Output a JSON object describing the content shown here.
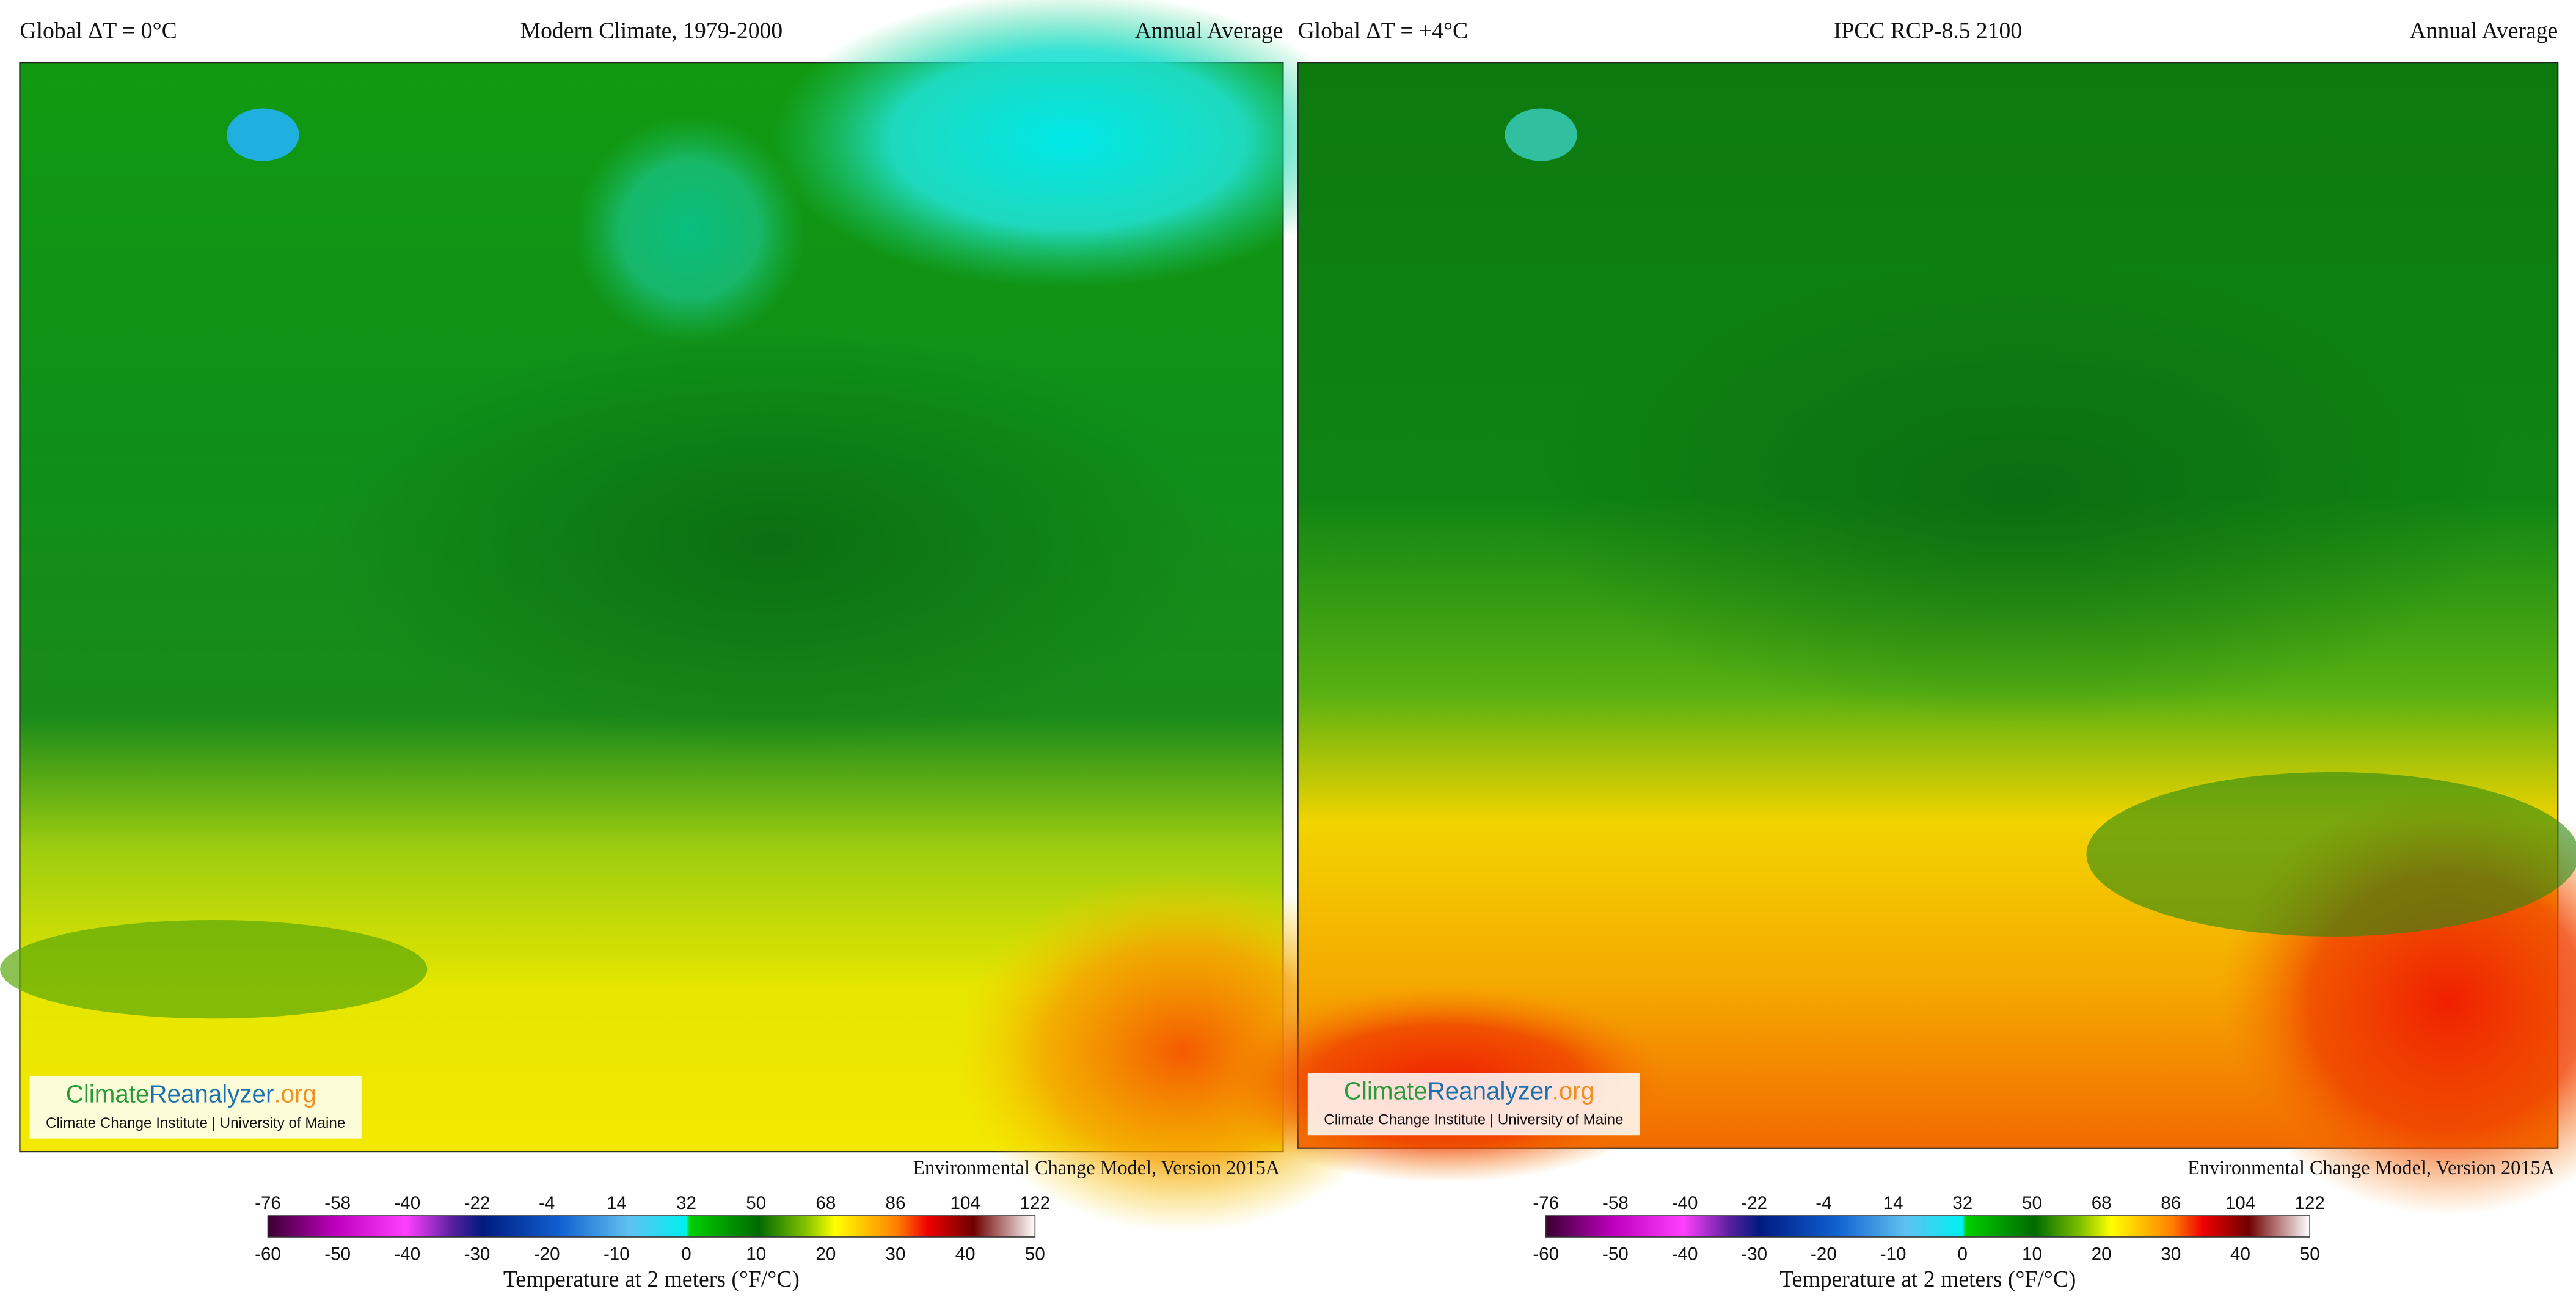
{
  "panels": [
    {
      "left": "Global ΔT = 0°C",
      "title": "Modern Climate, 1979-2000",
      "right": "Annual Average",
      "logo": {
        "part1": "Climate",
        "part2": "Reanalyzer",
        "part3": ".org",
        "sub": "Climate Change Institute | University of Maine"
      },
      "credit": "Environmental Change Model, Version 2015A",
      "colorbar": {
        "fahrenheit": [
          -76,
          -58,
          -40,
          -22,
          -4,
          14,
          32,
          50,
          68,
          86,
          104,
          122
        ],
        "celsius": [
          -60,
          -50,
          -40,
          -30,
          -20,
          -10,
          0,
          10,
          20,
          30,
          40,
          50
        ],
        "label": "Temperature at 2 meters (°F/°C)"
      }
    },
    {
      "left": "Global ΔT = +4°C",
      "title": "IPCC RCP-8.5 2100",
      "right": "Annual Average",
      "logo": {
        "part1": "Climate",
        "part2": "Reanalyzer",
        "part3": ".org",
        "sub": "Climate Change Institute | University of Maine"
      },
      "credit": "Environmental Change Model, Version 2015A",
      "colorbar": {
        "fahrenheit": [
          -76,
          -58,
          -40,
          -22,
          -4,
          14,
          32,
          50,
          68,
          86,
          104,
          122
        ],
        "celsius": [
          -60,
          -50,
          -40,
          -30,
          -20,
          -10,
          0,
          10,
          20,
          30,
          40,
          50
        ],
        "label": "Temperature at 2 meters (°F/°C)"
      }
    }
  ]
}
